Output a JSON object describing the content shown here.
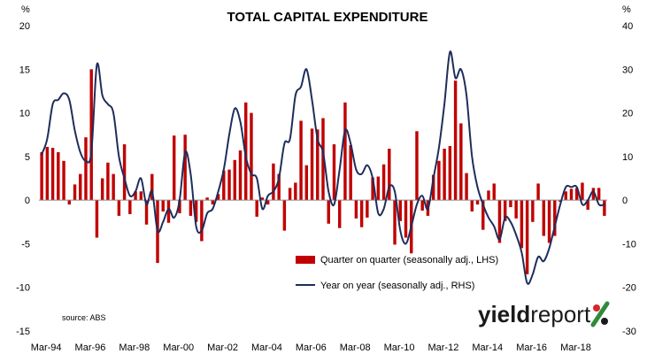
{
  "chart_data": {
    "type": "bar+line",
    "title": "TOTAL CAPITAL EXPENDITURE",
    "left_unit": "%",
    "right_unit": "%",
    "left_ylim": [
      -15,
      20
    ],
    "right_ylim": [
      -30,
      40
    ],
    "left_ticks": [
      "20",
      "15",
      "10",
      "5",
      "0",
      "-5",
      "-10",
      "-15"
    ],
    "right_ticks": [
      "40",
      "30",
      "20",
      "10",
      "0",
      "-10",
      "-20",
      "-30"
    ],
    "x_tick_labels": [
      "Mar-94",
      "Mar-96",
      "Mar-98",
      "Mar-00",
      "Mar-02",
      "Mar-04",
      "Mar-06",
      "Mar-08",
      "Mar-10",
      "Mar-12",
      "Mar-14",
      "Mar-16",
      "Mar-18"
    ],
    "grid": false,
    "source_text": "source: ABS",
    "series": [
      {
        "name": "Quarter on quarter (seasonally adj., LHS)",
        "type": "bar",
        "axis": "left",
        "color": "#c00000",
        "values": [
          5.5,
          6.1,
          6.0,
          5.5,
          4.5,
          -0.5,
          1.8,
          3.0,
          7.2,
          15.0,
          -4.3,
          2.5,
          4.3,
          3.0,
          -1.8,
          6.4,
          -1.6,
          1.0,
          1.0,
          -2.8,
          3.0,
          -7.2,
          -1.3,
          -2.6,
          7.4,
          -1.5,
          7.5,
          -1.8,
          -2.5,
          -4.7,
          0.3,
          -0.5,
          0.7,
          3.4,
          3.5,
          4.6,
          5.7,
          11.2,
          10.0,
          -1.9,
          0.3,
          -0.5,
          4.2,
          3.0,
          -3.5,
          1.4,
          2.0,
          9.1,
          4.0,
          8.2,
          8.1,
          9.4,
          -2.7,
          6.4,
          -3.2,
          11.2,
          6.3,
          -2.1,
          -3.1,
          -2.0,
          2.6,
          2.7,
          4.1,
          5.9,
          -5.1,
          -2.4,
          -4.3,
          -6.1,
          7.9,
          -1.2,
          -1.8,
          2.9,
          4.5,
          5.9,
          6.2,
          13.7,
          8.8,
          3.1,
          -1.3,
          -0.5,
          -3.4,
          1.1,
          1.9,
          -4.9,
          -2.4,
          -0.8,
          -2.1,
          -5.5,
          -8.5,
          -2.5,
          1.9,
          -4.1,
          -4.9,
          -4.1,
          -0.2,
          1.0,
          1.3,
          1.4,
          2.0,
          -1.1,
          1.4,
          1.4,
          -1.8
        ]
      },
      {
        "name": "Year on year (seasonally adj., RHS)",
        "type": "line",
        "axis": "right",
        "color": "#1f2d5c",
        "values": [
          10.5,
          14,
          22,
          23,
          24.5,
          23,
          16,
          11,
          9,
          11,
          31,
          24,
          22,
          20,
          10,
          5,
          1,
          2,
          5,
          -1,
          2,
          -7,
          -5,
          -2,
          -4,
          0,
          11,
          6,
          -6,
          -7,
          -3,
          -2,
          2,
          7,
          15,
          21,
          18,
          10,
          6,
          5,
          -2,
          1,
          2,
          5,
          13,
          14,
          24,
          26,
          30,
          23,
          14,
          11,
          2,
          -1,
          7,
          16,
          13,
          7,
          6,
          8,
          5,
          -3,
          -2,
          3,
          2,
          -7,
          -10,
          -6,
          -1,
          1,
          -2,
          5,
          12,
          22,
          34,
          28,
          30,
          24,
          10,
          3,
          -1,
          -4,
          -6,
          -9,
          -4,
          -5,
          -8,
          -12,
          -19,
          -17,
          -13,
          -14,
          -11,
          -6,
          -1,
          3,
          3,
          3,
          -1,
          0,
          2,
          -1,
          -1
        ]
      }
    ]
  }
}
